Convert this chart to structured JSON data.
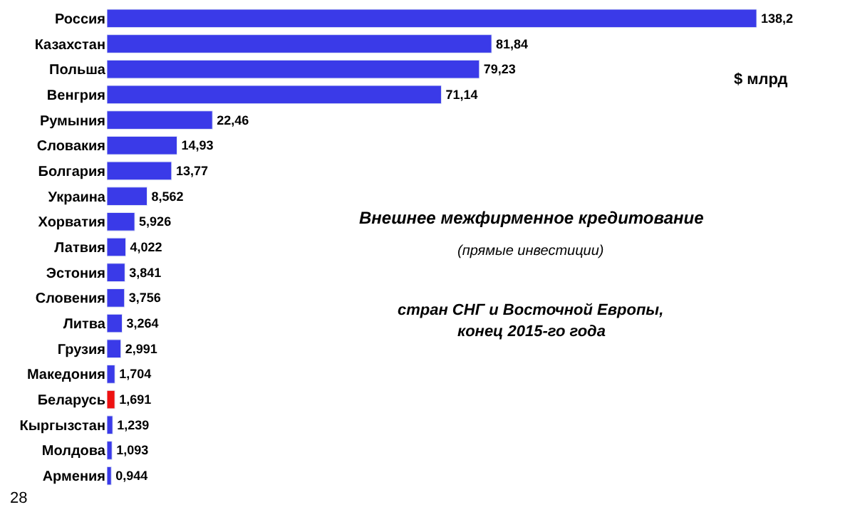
{
  "chart_data": {
    "type": "bar",
    "orientation": "horizontal",
    "title": "Внешнее межфирменное кредитование",
    "subtitle": "(прямые инвестиции)",
    "categories": [
      "Россия",
      "Казахстан",
      "Польша",
      "Венгрия",
      "Румыния",
      "Словакия",
      "Болгария",
      "Украина",
      "Хорватия",
      "Латвия",
      "Эстония",
      "Словения",
      "Литва",
      "Грузия",
      "Македония",
      "Беларусь",
      "Кыргызстан",
      "Молдова",
      "Армения"
    ],
    "values": [
      138.2,
      81.84,
      79.23,
      71.14,
      22.46,
      14.93,
      13.77,
      8.562,
      5.926,
      4.022,
      3.841,
      3.756,
      3.264,
      2.991,
      1.704,
      1.691,
      1.239,
      1.093,
      0.944
    ],
    "value_labels": [
      "138,2",
      "81,84",
      "79,23",
      "71,14",
      "22,46",
      "14,93",
      "13,77",
      "8,562",
      "5,926",
      "4,022",
      "3,841",
      "3,756",
      "3,264",
      "2,991",
      "1,704",
      "1,691",
      "1,239",
      "1,093",
      "0,944"
    ],
    "colors": [
      "#3a3ae8",
      "#3a3ae8",
      "#3a3ae8",
      "#3a3ae8",
      "#3a3ae8",
      "#3a3ae8",
      "#3a3ae8",
      "#3a3ae8",
      "#3a3ae8",
      "#3a3ae8",
      "#3a3ae8",
      "#3a3ae8",
      "#3a3ae8",
      "#3a3ae8",
      "#3a3ae8",
      "#ee1111",
      "#3a3ae8",
      "#3a3ae8",
      "#3a3ae8"
    ],
    "annotations": [
      "стран СНГ и Восточной Европы,",
      "конец 2015-го года",
      "$ млрд",
      "28"
    ],
    "legend": false
  }
}
